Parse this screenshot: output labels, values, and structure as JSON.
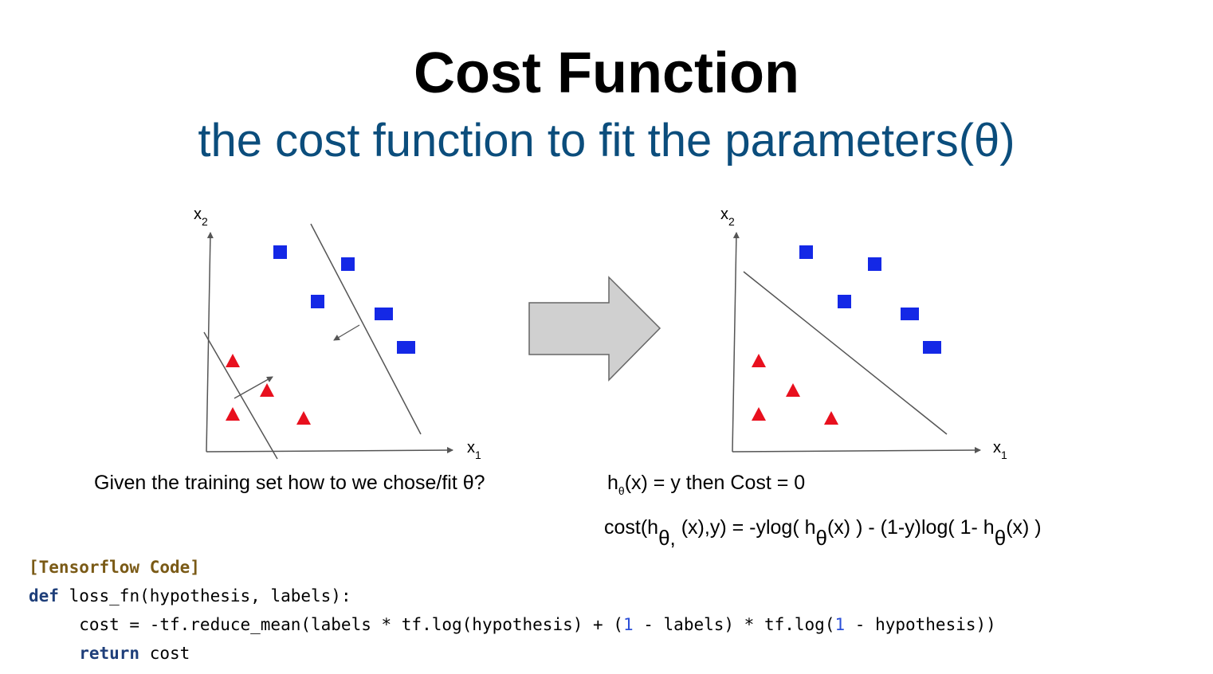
{
  "slide": {
    "title": "Cost Function",
    "subtitle": "the cost function to fit the parameters(θ)"
  },
  "diagram_left": {
    "x_axis_label": "x",
    "x_axis_sub": "1",
    "y_axis_label": "x",
    "y_axis_sub": "2",
    "square_color": "#1428e6",
    "triangle_color": "#e8101e"
  },
  "diagram_right": {
    "x_axis_label": "x",
    "x_axis_sub": "1",
    "y_axis_label": "x",
    "y_axis_sub": "2"
  },
  "arrow": {
    "fill": "#d0d0d0",
    "icon": "right-arrow-icon"
  },
  "caption": {
    "text": "Given the training set how to we chose/fit θ?"
  },
  "equation1": {
    "h": "h",
    "h_sub": "θ",
    "rest": "(x) = y then Cost = 0"
  },
  "equation2": {
    "p1": "cost(h",
    "p1_sub": "θ,",
    "p2": " (x),y) = -ylog( h",
    "p2_sub": "θ",
    "p3": "(x) ) - (1-y)log( 1- h",
    "p3_sub": "θ",
    "p4": "(x) )"
  },
  "code": {
    "header": "[Tensorflow Code]",
    "line1_kw": "def",
    "line1_rest": " loss_fn(hypothesis, labels):",
    "line2_a": "     cost = -tf.reduce_mean(labels * tf.log(hypothesis) + (",
    "line2_num1": "1",
    "line2_b": " - labels) * tf.log(",
    "line2_num2": "1",
    "line2_c": " - hypothesis))",
    "line3_indent": "     ",
    "line3_kw": "return",
    "line3_rest": " cost"
  }
}
